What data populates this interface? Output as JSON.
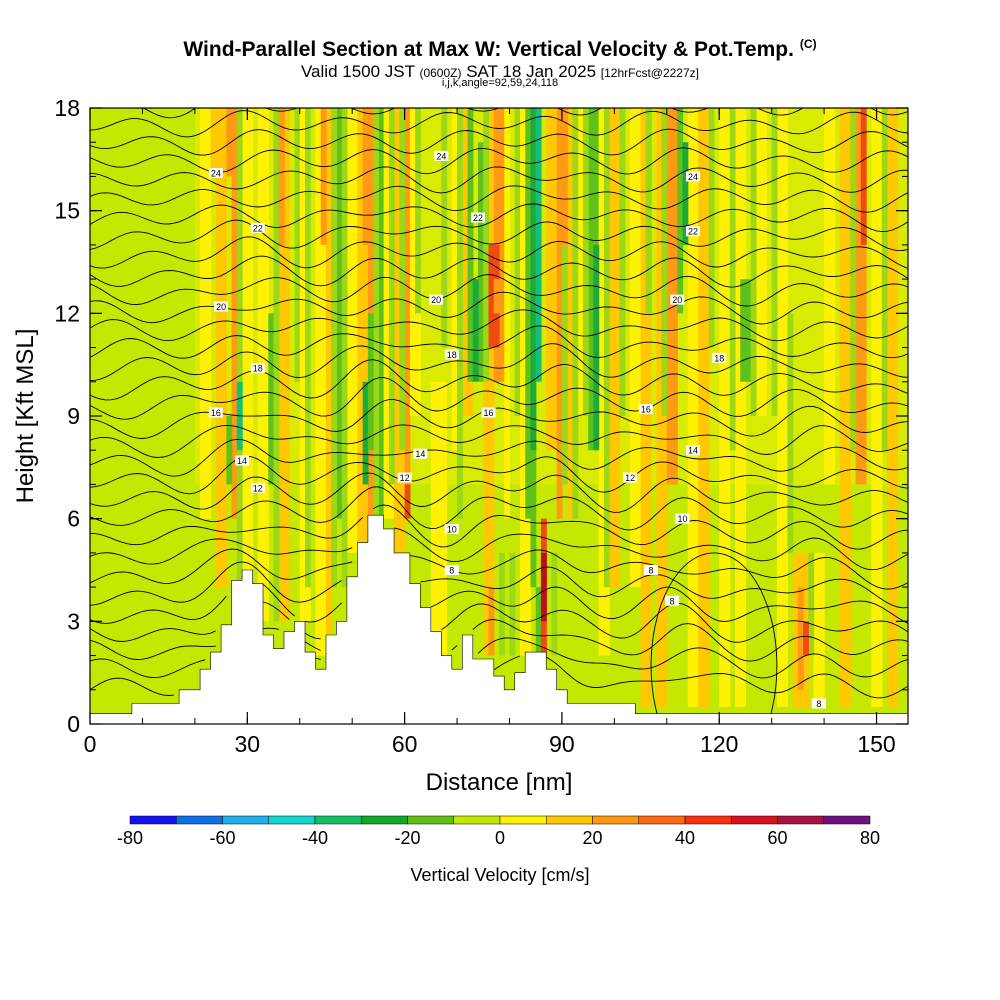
{
  "header": {
    "title_main": "Wind-Parallel Section at Max W: Vertical Velocity & Pot.Temp.",
    "copyright": "(C)",
    "valid_prefix": "Valid 1500 JST",
    "valid_utc": "(0600Z)",
    "valid_date": "SAT 18 Jan 2025",
    "forecast": "[12hrFcst@2227z]",
    "indices": "i,j,k,angle=92,59,24,118"
  },
  "chart_data": {
    "type": "heatmap",
    "xlabel": "Distance [nm]",
    "ylabel": "Height [Kft MSL]",
    "xlim": [
      0,
      156
    ],
    "ylim": [
      0,
      18
    ],
    "x_ticks": [
      0,
      30,
      60,
      90,
      120,
      150
    ],
    "y_ticks": [
      0,
      3,
      6,
      9,
      12,
      15,
      18
    ],
    "terrain": [
      [
        0,
        0.3
      ],
      [
        8,
        0.3
      ],
      [
        8,
        0.6
      ],
      [
        17,
        0.6
      ],
      [
        17,
        1
      ],
      [
        21,
        1
      ],
      [
        21,
        1.6
      ],
      [
        23,
        1.6
      ],
      [
        23,
        2.1
      ],
      [
        25,
        2.1
      ],
      [
        25,
        2.9
      ],
      [
        27,
        2.9
      ],
      [
        27,
        4.2
      ],
      [
        29,
        4.2
      ],
      [
        29,
        4.5
      ],
      [
        31,
        4.5
      ],
      [
        31,
        4.1
      ],
      [
        33,
        4.1
      ],
      [
        33,
        2.6
      ],
      [
        35,
        2.6
      ],
      [
        35,
        2.2
      ],
      [
        37,
        2.2
      ],
      [
        37,
        2.7
      ],
      [
        39,
        2.7
      ],
      [
        39,
        3.0
      ],
      [
        41,
        3.0
      ],
      [
        41,
        2.1
      ],
      [
        43,
        2.1
      ],
      [
        43,
        1.6
      ],
      [
        45,
        1.6
      ],
      [
        45,
        2.6
      ],
      [
        47,
        2.6
      ],
      [
        47,
        3.0
      ],
      [
        49,
        3.0
      ],
      [
        49,
        4.3
      ],
      [
        51,
        4.3
      ],
      [
        51,
        5.3
      ],
      [
        53,
        5.3
      ],
      [
        53,
        6.1
      ],
      [
        56,
        6.1
      ],
      [
        56,
        5.7
      ],
      [
        58,
        5.7
      ],
      [
        58,
        5.0
      ],
      [
        61,
        5.0
      ],
      [
        61,
        4.1
      ],
      [
        63,
        4.1
      ],
      [
        63,
        3.4
      ],
      [
        65,
        3.4
      ],
      [
        65,
        2.7
      ],
      [
        67,
        2.7
      ],
      [
        67,
        2.0
      ],
      [
        69,
        2.0
      ],
      [
        69,
        1.6
      ],
      [
        71,
        1.6
      ],
      [
        71,
        2.6
      ],
      [
        73,
        2.6
      ],
      [
        73,
        1.9
      ],
      [
        77,
        1.9
      ],
      [
        77,
        1.4
      ],
      [
        79,
        1.4
      ],
      [
        79,
        1.0
      ],
      [
        81,
        1.0
      ],
      [
        81,
        1.5
      ],
      [
        83,
        1.5
      ],
      [
        83,
        2.1
      ],
      [
        87,
        2.1
      ],
      [
        87,
        1.6
      ],
      [
        89,
        1.6
      ],
      [
        89,
        1.0
      ],
      [
        91,
        1.0
      ],
      [
        91,
        0.6
      ],
      [
        104,
        0.6
      ],
      [
        104,
        0.3
      ],
      [
        156,
        0.3
      ]
    ],
    "isentrope_labels": [
      {
        "x": 24,
        "y": 16.1,
        "text": "24"
      },
      {
        "x": 67,
        "y": 16.6,
        "text": "24"
      },
      {
        "x": 115,
        "y": 16.0,
        "text": "24"
      },
      {
        "x": 32,
        "y": 14.5,
        "text": "22"
      },
      {
        "x": 74,
        "y": 14.8,
        "text": "22"
      },
      {
        "x": 115,
        "y": 14.4,
        "text": "22"
      },
      {
        "x": 25,
        "y": 12.2,
        "text": "20"
      },
      {
        "x": 66,
        "y": 12.4,
        "text": "20"
      },
      {
        "x": 112,
        "y": 12.4,
        "text": "20"
      },
      {
        "x": 32,
        "y": 10.4,
        "text": "18"
      },
      {
        "x": 69,
        "y": 10.8,
        "text": "18"
      },
      {
        "x": 120,
        "y": 10.7,
        "text": "18"
      },
      {
        "x": 24,
        "y": 9.1,
        "text": "16"
      },
      {
        "x": 76,
        "y": 9.1,
        "text": "16"
      },
      {
        "x": 106,
        "y": 9.2,
        "text": "16"
      },
      {
        "x": 29,
        "y": 7.7,
        "text": "14"
      },
      {
        "x": 63,
        "y": 7.9,
        "text": "14"
      },
      {
        "x": 115,
        "y": 8.0,
        "text": "14"
      },
      {
        "x": 32,
        "y": 6.9,
        "text": "12"
      },
      {
        "x": 60,
        "y": 7.2,
        "text": "12"
      },
      {
        "x": 103,
        "y": 7.2,
        "text": "12"
      },
      {
        "x": 69,
        "y": 5.7,
        "text": "10"
      },
      {
        "x": 113,
        "y": 6.0,
        "text": "10"
      },
      {
        "x": 69,
        "y": 4.5,
        "text": "8"
      },
      {
        "x": 107,
        "y": 4.5,
        "text": "8"
      },
      {
        "x": 111,
        "y": 3.6,
        "text": "8"
      },
      {
        "x": 139,
        "y": 0.6,
        "text": "8"
      }
    ],
    "colorbar": {
      "label": "Vertical Velocity [cm/s]",
      "tick_labels": [
        "-80",
        "-60",
        "-40",
        "-20",
        "0",
        "20",
        "40",
        "60",
        "80"
      ],
      "min": -80,
      "max": 80,
      "colors": [
        "#1010f0",
        "#0f6fe8",
        "#1fb0f0",
        "#10d8d0",
        "#12c060",
        "#12a828",
        "#60c012",
        "#c0e800",
        "#fff000",
        "#ffc800",
        "#ff9810",
        "#ff6810",
        "#f83010",
        "#d81020",
        "#a81040",
        "#6e1080"
      ]
    },
    "field_colors": {
      "neutral": "#c4e800",
      "weak_down": "#9cd816",
      "down": "#5ec21a",
      "strong_down": "#1eaa3a",
      "very_strong_down": "#16c07a",
      "weak_up": "#fff200",
      "up": "#ffc800",
      "strong_up": "#ff9a14",
      "very_strong_up": "#f04a12",
      "extreme_up": "#b81020"
    }
  }
}
